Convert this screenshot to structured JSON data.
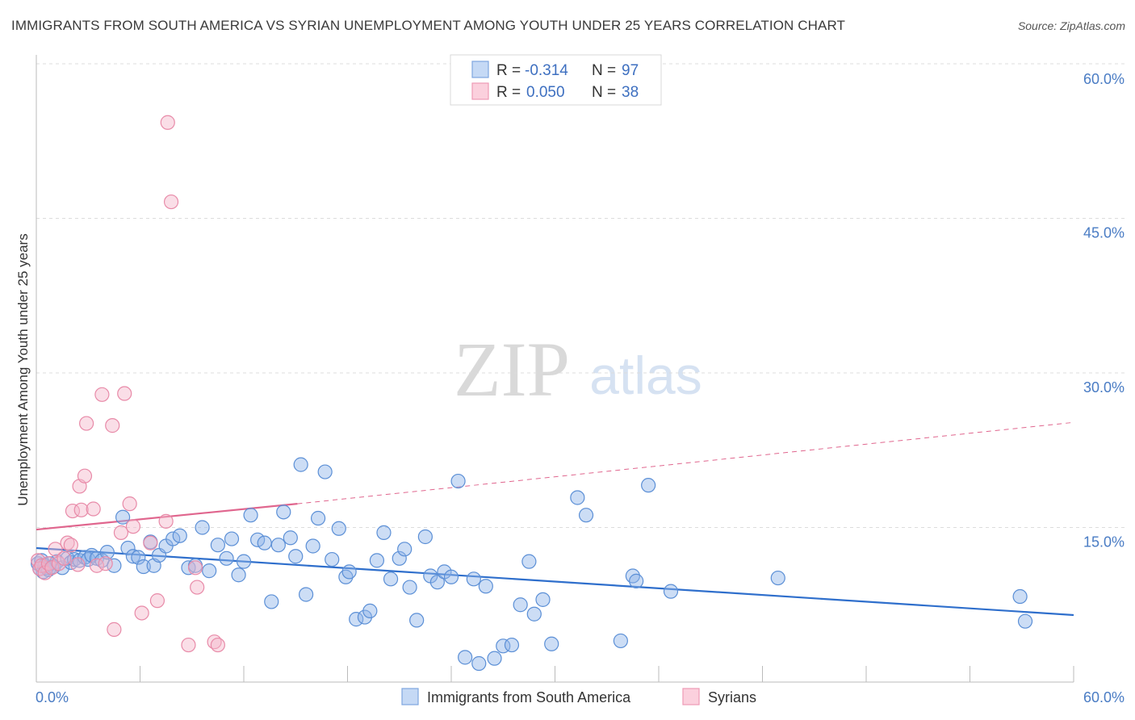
{
  "title": "IMMIGRANTS FROM SOUTH AMERICA VS SYRIAN UNEMPLOYMENT AMONG YOUTH UNDER 25 YEARS CORRELATION CHART",
  "source": "Source: ZipAtlas.com",
  "watermark": {
    "zip": "ZIP",
    "atlas": "atlas"
  },
  "legend_top": {
    "rows": [
      {
        "r_label": "R = ",
        "r_value": "-0.314",
        "n_label": "N = ",
        "n_value": "97"
      },
      {
        "r_label": "R = ",
        "r_value": "0.050",
        "n_label": "N = ",
        "n_value": "38"
      }
    ]
  },
  "chart_data": {
    "type": "scatter",
    "title": "IMMIGRANTS FROM SOUTH AMERICA VS SYRIAN UNEMPLOYMENT AMONG YOUTH UNDER 25 YEARS CORRELATION CHART",
    "xlabel": "",
    "ylabel": "Unemployment Among Youth under 25 years",
    "xlim": [
      0,
      60
    ],
    "ylim": [
      0,
      60
    ],
    "x_tick_labels": [
      "0.0%",
      "60.0%"
    ],
    "y_ticks": [
      15,
      30,
      45,
      60
    ],
    "y_tick_labels": [
      "15.0%",
      "30.0%",
      "45.0%",
      "60.0%"
    ],
    "grid": true,
    "legend": "bottom-center",
    "series": [
      {
        "name": "Immigrants from South America",
        "color": "#8fb4e8",
        "stroke": "#5b8fd6",
        "trend": {
          "x0": 0,
          "y0": 13.0,
          "x1": 60,
          "y1": 6.5,
          "style": "solid",
          "color": "#2f6fcc"
        },
        "points": [
          [
            0.1,
            11.5
          ],
          [
            0.2,
            11.0
          ],
          [
            0.3,
            11.8
          ],
          [
            0.4,
            10.7
          ],
          [
            0.5,
            11.3
          ],
          [
            0.6,
            11.1
          ],
          [
            0.7,
            10.9
          ],
          [
            0.8,
            11.5
          ],
          [
            1.0,
            11.2
          ],
          [
            1.2,
            11.7
          ],
          [
            1.5,
            11.1
          ],
          [
            1.8,
            12.0
          ],
          [
            2.0,
            11.6
          ],
          [
            2.2,
            11.9
          ],
          [
            2.5,
            11.8
          ],
          [
            2.8,
            12.1
          ],
          [
            3.0,
            11.9
          ],
          [
            3.2,
            12.3
          ],
          [
            3.5,
            12.0
          ],
          [
            3.8,
            11.8
          ],
          [
            4.1,
            12.6
          ],
          [
            4.5,
            11.3
          ],
          [
            5.0,
            16.0
          ],
          [
            5.3,
            13.0
          ],
          [
            5.6,
            12.2
          ],
          [
            5.9,
            12.1
          ],
          [
            6.2,
            11.2
          ],
          [
            6.6,
            13.6
          ],
          [
            6.8,
            11.3
          ],
          [
            7.1,
            12.3
          ],
          [
            7.5,
            13.2
          ],
          [
            7.9,
            13.9
          ],
          [
            8.3,
            14.2
          ],
          [
            8.8,
            11.1
          ],
          [
            9.2,
            11.3
          ],
          [
            9.6,
            15.0
          ],
          [
            10.0,
            10.8
          ],
          [
            10.5,
            13.3
          ],
          [
            11.0,
            12.0
          ],
          [
            11.3,
            13.9
          ],
          [
            11.7,
            10.4
          ],
          [
            12.0,
            11.7
          ],
          [
            12.4,
            16.2
          ],
          [
            12.8,
            13.8
          ],
          [
            13.2,
            13.5
          ],
          [
            13.6,
            7.8
          ],
          [
            14.0,
            13.3
          ],
          [
            14.3,
            16.5
          ],
          [
            14.7,
            14.0
          ],
          [
            15.0,
            12.2
          ],
          [
            15.3,
            21.1
          ],
          [
            15.6,
            8.5
          ],
          [
            16.0,
            13.2
          ],
          [
            16.3,
            15.9
          ],
          [
            16.7,
            20.4
          ],
          [
            17.1,
            11.9
          ],
          [
            17.5,
            14.9
          ],
          [
            17.9,
            10.2
          ],
          [
            18.1,
            10.7
          ],
          [
            18.5,
            6.1
          ],
          [
            19.0,
            6.3
          ],
          [
            19.3,
            6.9
          ],
          [
            19.7,
            11.8
          ],
          [
            20.1,
            14.5
          ],
          [
            20.5,
            10.0
          ],
          [
            21.0,
            12.0
          ],
          [
            21.3,
            12.9
          ],
          [
            21.6,
            9.2
          ],
          [
            22.0,
            6.0
          ],
          [
            22.5,
            14.1
          ],
          [
            22.8,
            10.3
          ],
          [
            23.2,
            9.7
          ],
          [
            23.6,
            10.7
          ],
          [
            24.0,
            10.2
          ],
          [
            24.4,
            19.5
          ],
          [
            24.8,
            2.4
          ],
          [
            25.3,
            10.0
          ],
          [
            25.6,
            1.8
          ],
          [
            26.0,
            9.3
          ],
          [
            26.5,
            2.3
          ],
          [
            27.0,
            3.5
          ],
          [
            27.5,
            3.6
          ],
          [
            28.0,
            7.5
          ],
          [
            28.5,
            11.7
          ],
          [
            28.8,
            6.6
          ],
          [
            29.3,
            8.0
          ],
          [
            29.8,
            3.7
          ],
          [
            31.3,
            17.9
          ],
          [
            31.8,
            16.2
          ],
          [
            33.8,
            4.0
          ],
          [
            34.5,
            10.3
          ],
          [
            34.7,
            9.8
          ],
          [
            35.4,
            19.1
          ],
          [
            36.7,
            8.8
          ],
          [
            42.9,
            10.1
          ],
          [
            56.9,
            8.3
          ],
          [
            57.2,
            5.9
          ]
        ]
      },
      {
        "name": "Syrians",
        "color": "#f5b6c9",
        "stroke": "#e88aa8",
        "trend": {
          "x0": 0,
          "y0": 14.8,
          "x1": 15.1,
          "y1": 17.3,
          "dashed_to_x": 60,
          "dashed_to_y": 25.2,
          "style": "solid-then-dashed",
          "color": "#e0668e"
        },
        "points": [
          [
            0.1,
            11.8
          ],
          [
            0.2,
            11.0
          ],
          [
            0.3,
            11.3
          ],
          [
            0.5,
            10.6
          ],
          [
            0.7,
            11.5
          ],
          [
            0.9,
            11.1
          ],
          [
            1.1,
            12.9
          ],
          [
            1.3,
            11.5
          ],
          [
            1.6,
            12.0
          ],
          [
            1.8,
            13.5
          ],
          [
            2.0,
            13.3
          ],
          [
            2.1,
            16.6
          ],
          [
            2.4,
            11.4
          ],
          [
            2.5,
            19.0
          ],
          [
            2.6,
            16.7
          ],
          [
            2.8,
            20.0
          ],
          [
            2.9,
            25.1
          ],
          [
            3.3,
            16.8
          ],
          [
            3.5,
            11.3
          ],
          [
            3.8,
            27.9
          ],
          [
            4.0,
            11.5
          ],
          [
            4.4,
            24.9
          ],
          [
            4.5,
            5.1
          ],
          [
            4.9,
            14.5
          ],
          [
            5.1,
            28.0
          ],
          [
            5.4,
            17.3
          ],
          [
            5.6,
            15.1
          ],
          [
            6.1,
            6.7
          ],
          [
            6.6,
            13.5
          ],
          [
            7.0,
            7.9
          ],
          [
            7.5,
            15.6
          ],
          [
            7.6,
            54.3
          ],
          [
            7.8,
            46.6
          ],
          [
            8.8,
            3.6
          ],
          [
            9.2,
            11.1
          ],
          [
            9.3,
            9.2
          ],
          [
            10.3,
            3.9
          ],
          [
            10.5,
            3.6
          ]
        ]
      }
    ]
  }
}
